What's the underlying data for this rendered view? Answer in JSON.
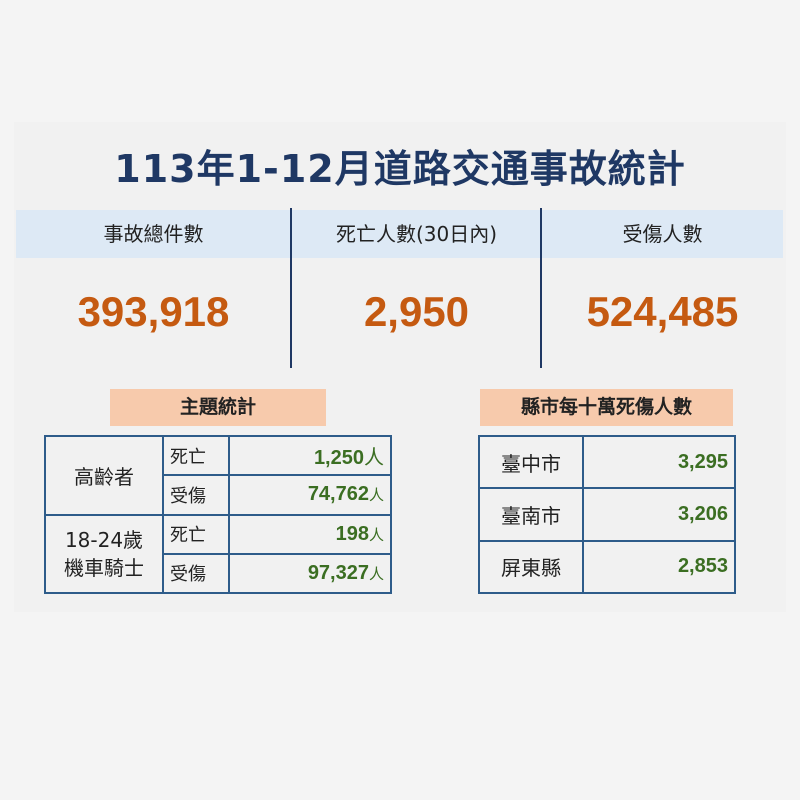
{
  "title": "113年1-12月道路交通事故統計",
  "summary": [
    {
      "label": "事故總件數",
      "value": "393,918"
    },
    {
      "label": "死亡人數(30日內)",
      "value": "2,950"
    },
    {
      "label": "受傷人數",
      "value": "524,485"
    }
  ],
  "topic": {
    "title": "主題統計",
    "unit": "人",
    "groups": [
      {
        "name": "高齡者",
        "rows": [
          {
            "type": "死亡",
            "value": "1,250"
          },
          {
            "type": "受傷",
            "value": "74,762"
          }
        ]
      },
      {
        "name_line1": "18-24歲",
        "name_line2": "機車騎士",
        "rows": [
          {
            "type": "死亡",
            "value": "198"
          },
          {
            "type": "受傷",
            "value": "97,327"
          }
        ]
      }
    ]
  },
  "city": {
    "title": "縣市每十萬死傷人數",
    "rows": [
      {
        "name": "臺中市",
        "value": "3,295"
      },
      {
        "name": "臺南市",
        "value": "3,206"
      },
      {
        "name": "屏東縣",
        "value": "2,853"
      }
    ]
  },
  "colors": {
    "title": "#1f3864",
    "number": "#c55a11",
    "green": "#3b6e22",
    "band": "#dde9f5",
    "label": "#f7caac"
  }
}
